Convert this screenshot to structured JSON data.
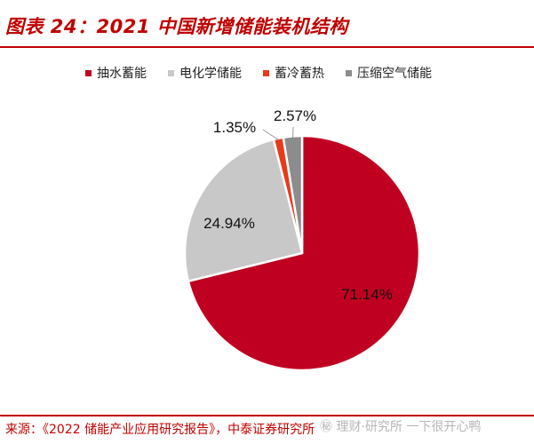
{
  "figure": {
    "title": "图表 24：2021 中国新增储能装机结构",
    "source": "来源：《2022 储能产业应用研究报告》，中泰证券研究所",
    "watermark": "㊙ 理财·研究所 一下很开心鸭"
  },
  "colors": {
    "accent": "#c00000",
    "pumped_hydro": "#c00020",
    "electrochemical": "#c8c8c8",
    "thermal": "#e83a1a",
    "compressed_air": "#8c8c8c"
  },
  "chart_data": {
    "type": "pie",
    "title": "2021 中国新增储能装机结构",
    "legend_position": "top",
    "slices": [
      {
        "name": "抽水蓄能",
        "value": 71.14,
        "label": "71.14%",
        "color": "#c00020"
      },
      {
        "name": "电化学储能",
        "value": 24.94,
        "label": "24.94%",
        "color": "#c8c8c8"
      },
      {
        "name": "蓄冷蓄热",
        "value": 1.35,
        "label": "1.35%",
        "color": "#e83a1a"
      },
      {
        "name": "压缩空气储能",
        "value": 2.57,
        "label": "2.57%",
        "color": "#8c8c8c"
      }
    ]
  }
}
